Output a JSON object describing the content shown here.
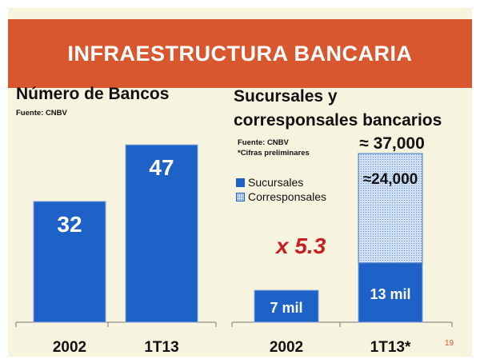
{
  "title": "INFRAESTRUCTURA BANCARIA",
  "page_number": "19",
  "multiplier_label": "x 5.3",
  "colors": {
    "title_band": "#d9572e",
    "background": "#f6f4df",
    "bar_blue": "#1e62c8",
    "bar_dots": "#cfe0f5",
    "multiplier": "#c81f25"
  },
  "chart_data": [
    {
      "type": "bar",
      "title": "Número de Bancos",
      "source": "Fuente: CNBV",
      "categories": [
        "2002",
        "1T13"
      ],
      "values": [
        32,
        47
      ],
      "data_labels": [
        "32",
        "47"
      ],
      "ylim": [
        0,
        50
      ],
      "grid": false
    },
    {
      "type": "bar",
      "stacked": true,
      "title": "Sucursales y corresponsales bancarios",
      "source": "Fuente: CNBV",
      "note": "*Cifras preliminares",
      "categories": [
        "2002",
        "1T13*"
      ],
      "series": [
        {
          "name": "Sucursales",
          "values": [
            7000,
            13000
          ],
          "labels": [
            "7 mil",
            "13 mil"
          ]
        },
        {
          "name": "Corresponsales",
          "values": [
            0,
            24000
          ],
          "labels": [
            "",
            "≈24,000"
          ]
        }
      ],
      "totals_labels": [
        "",
        "≈ 37,000"
      ],
      "ylim": [
        0,
        38000
      ],
      "legend": "top-left",
      "grid": false
    }
  ]
}
